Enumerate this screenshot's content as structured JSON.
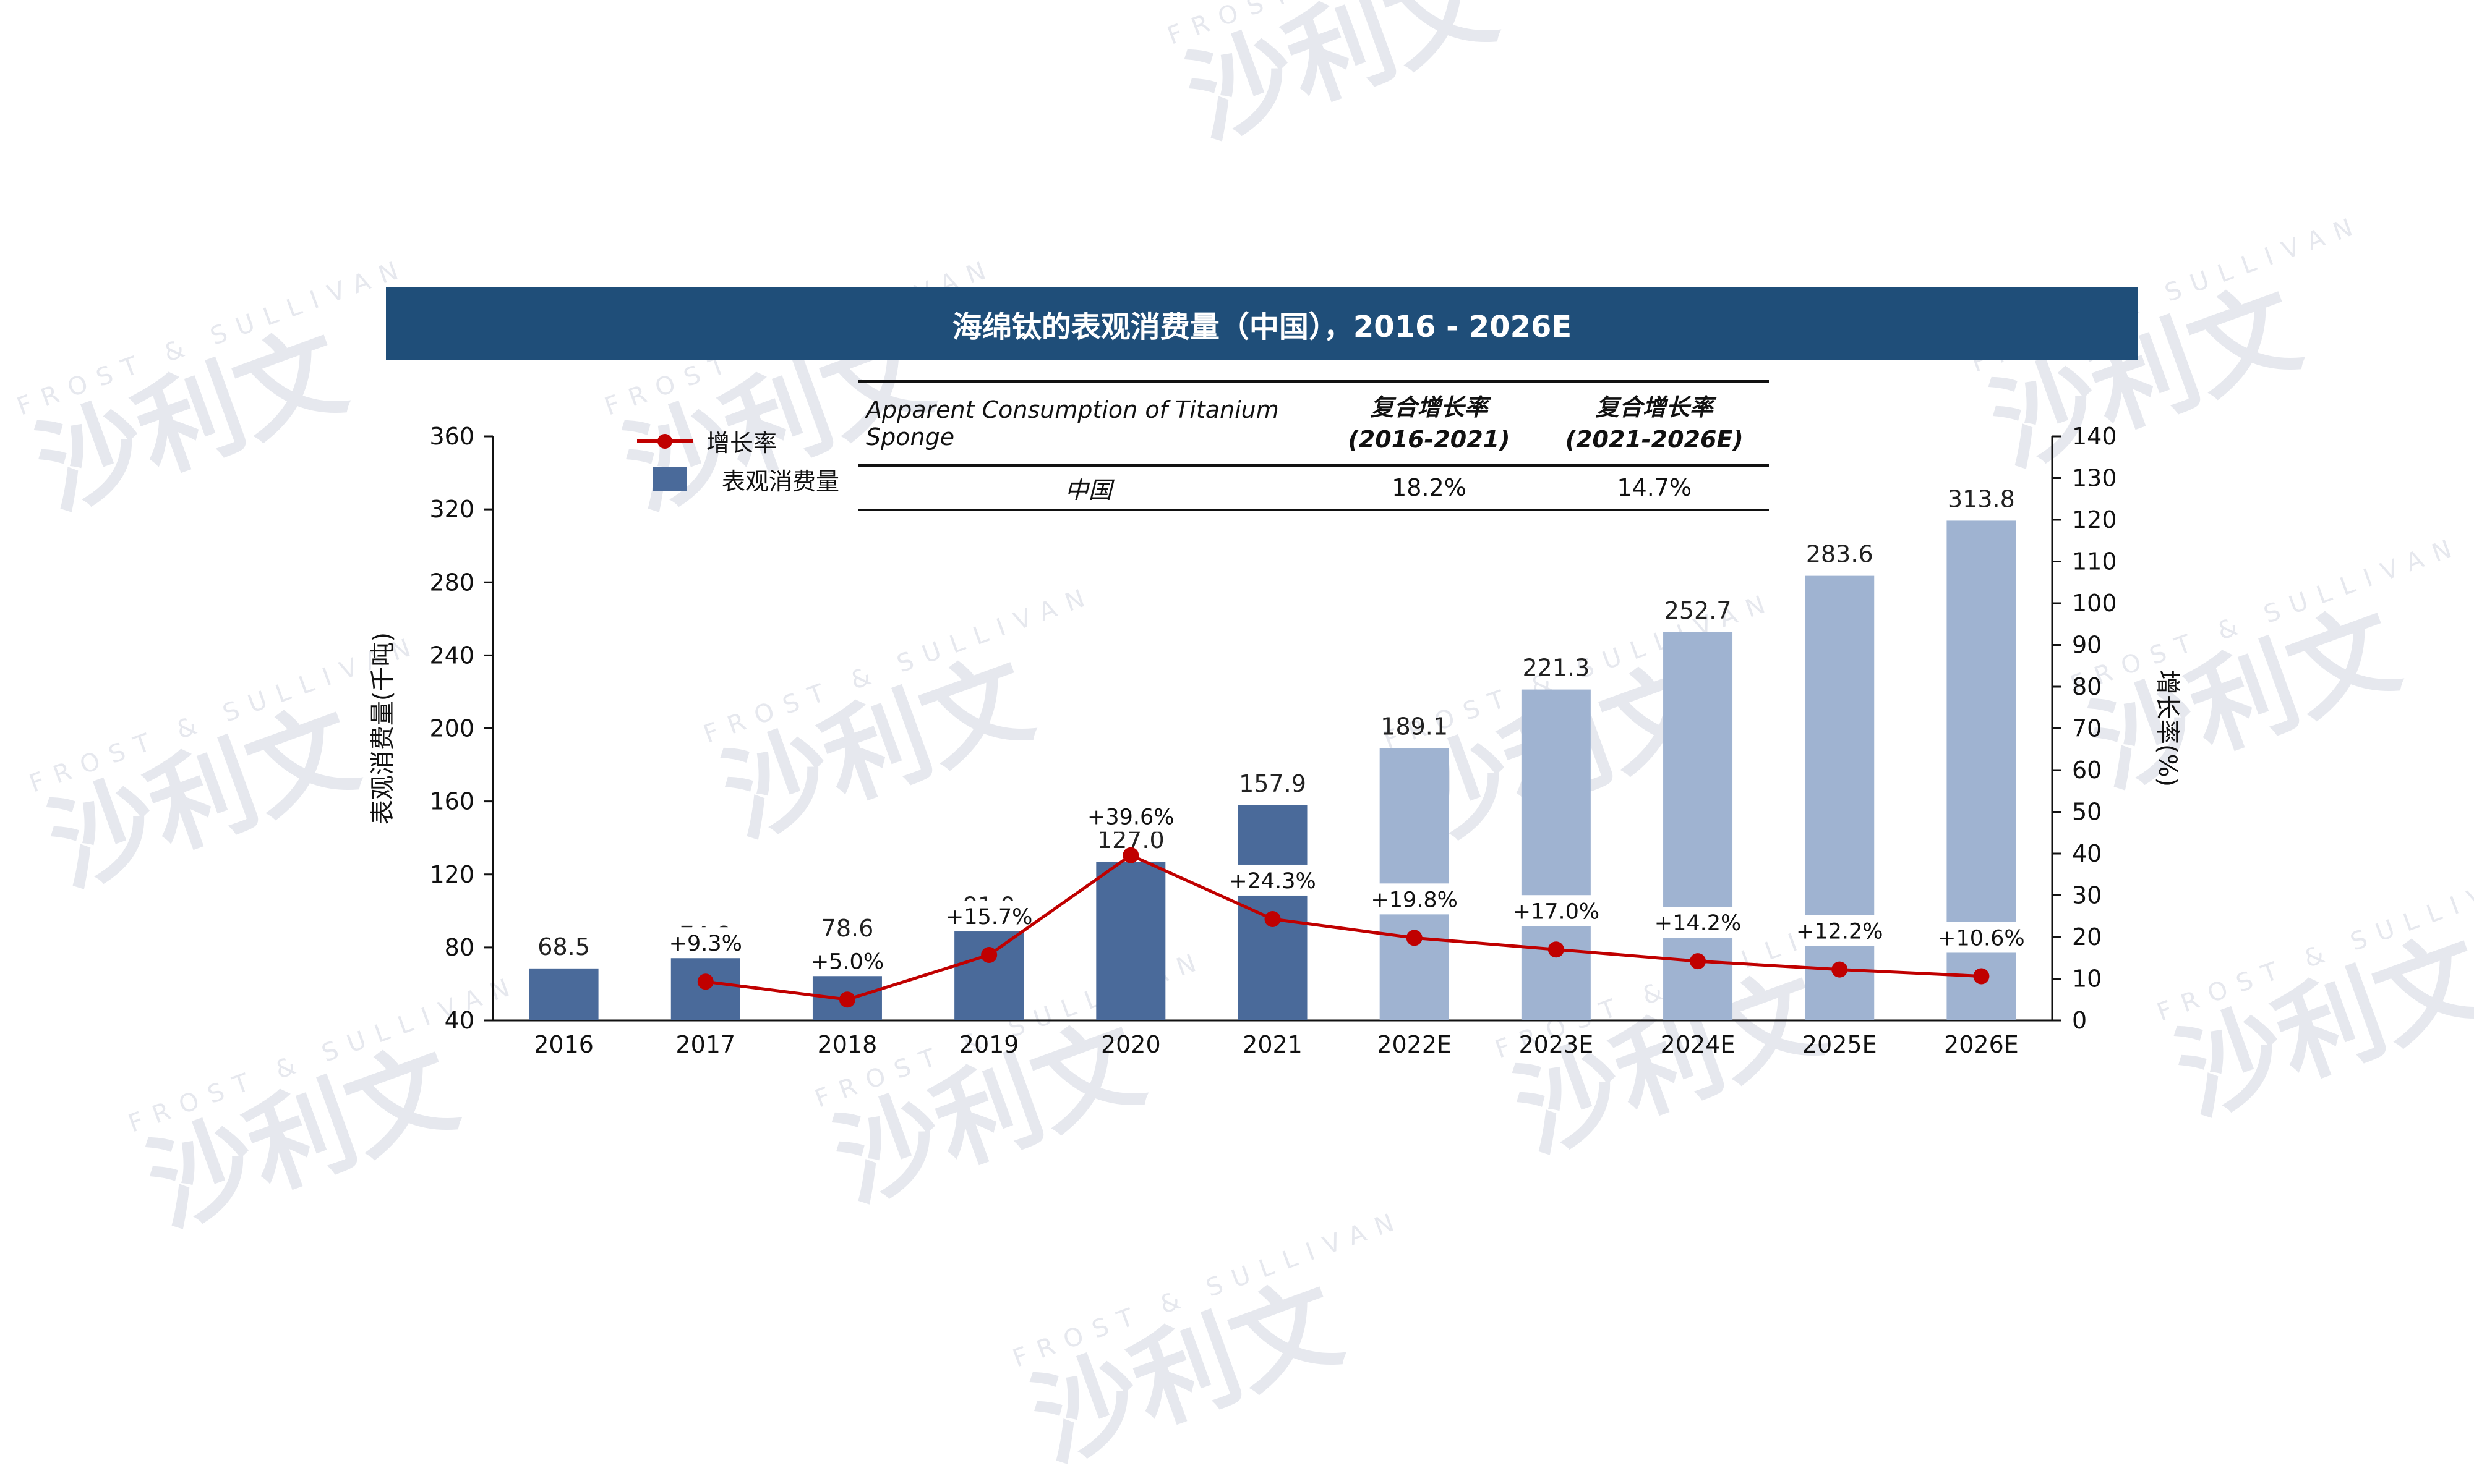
{
  "watermark": {
    "text": "沙利文",
    "sub": "FROST & SULLIVAN"
  },
  "title": "海绵钛的表观消费量（中国），2016 - 2026E",
  "table": {
    "header_label": "Apparent Consumption of Titanium Sponge",
    "col1": [
      "复合增长率",
      "(2016-2021)"
    ],
    "col2": [
      "复合增长率",
      "(2021-2026E)"
    ],
    "row": {
      "region": "中国",
      "cagr1": "18.2%",
      "cagr2": "14.7%"
    }
  },
  "legend": {
    "line": "增长率",
    "bar": "表观消费量"
  },
  "colors": {
    "title_bg": "#1f4e79",
    "bar_actual": "#4a6a9a",
    "bar_forecast": "#9fb3d1",
    "line": "#c00000"
  },
  "chart_data": {
    "type": "bar",
    "categories": [
      "2016",
      "2017",
      "2018",
      "2019",
      "2020",
      "2021",
      "2022E",
      "2023E",
      "2024E",
      "2025E",
      "2026E"
    ],
    "series": [
      {
        "name": "表观消费量",
        "type": "bar",
        "axis": "left",
        "values": [
          68.5,
          74.9,
          78.6,
          91.0,
          127.0,
          157.9,
          189.1,
          221.3,
          252.7,
          283.6,
          313.8
        ],
        "labels": [
          "68.5",
          "74.9",
          "78.6",
          "91.0",
          "127.0",
          "157.9",
          "189.1",
          "221.3",
          "252.7",
          "283.6",
          "313.8"
        ],
        "forecast_from_index": 6
      },
      {
        "name": "增长率",
        "type": "line",
        "axis": "right",
        "values": [
          null,
          9.3,
          5.0,
          15.7,
          39.6,
          24.3,
          19.8,
          17.0,
          14.2,
          12.2,
          10.6
        ],
        "labels": [
          null,
          "+9.3%",
          "+5.0%",
          "+15.7%",
          "+39.6%",
          "+24.3%",
          "+19.8%",
          "+17.0%",
          "+14.2%",
          "+12.2%",
          "+10.6%"
        ]
      }
    ],
    "ylabel": "表观消费量(千吨)",
    "y2label": "增长率(%)",
    "ylim": [
      40,
      360
    ],
    "yticks": [
      40,
      80,
      120,
      160,
      200,
      240,
      280,
      320,
      360
    ],
    "y2lim": [
      0,
      140
    ],
    "y2ticks": [
      0,
      10,
      20,
      30,
      40,
      50,
      60,
      70,
      80,
      90,
      100,
      110,
      120,
      130,
      140
    ],
    "grid": false,
    "legend_position": "top-left"
  }
}
